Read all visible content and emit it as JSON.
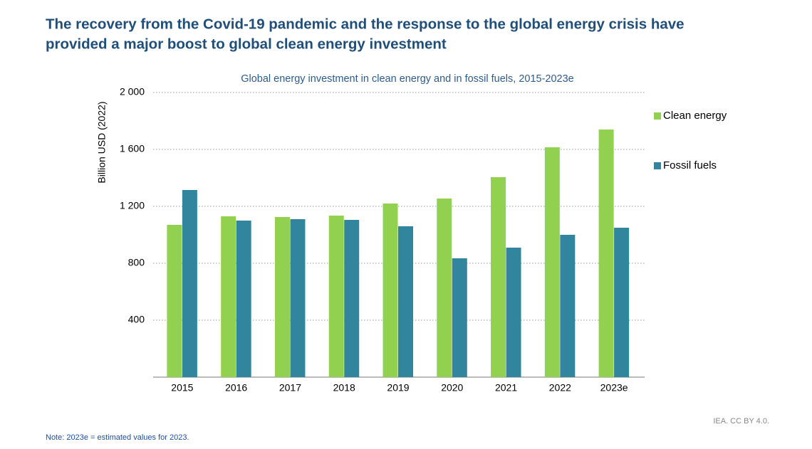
{
  "headline": [
    "The recovery from the Covid-19 pandemic and the response to the global energy crisis have",
    "provided a major boost to global clean energy investment"
  ],
  "source": "IEA. CC BY 4.0.",
  "note": "Note:  2023e = estimated values for 2023.",
  "chart_data": {
    "type": "bar",
    "title": "Global energy investment in clean energy and in fossil fuels, 2015-2023e",
    "y_label": "Billion USD (2022)",
    "categories": [
      "2015",
      "2016",
      "2017",
      "2018",
      "2019",
      "2020",
      "2021",
      "2022",
      "2023e"
    ],
    "series": [
      {
        "name": "Clean energy",
        "color": "#92d050",
        "values": [
          1070,
          1130,
          1125,
          1135,
          1220,
          1255,
          1405,
          1615,
          1740
        ]
      },
      {
        "name": "Fossil fuels",
        "color": "#31859c",
        "values": [
          1315,
          1100,
          1110,
          1105,
          1060,
          835,
          910,
          1000,
          1050
        ]
      }
    ],
    "ylim": [
      0,
      2000
    ],
    "yticks": [
      400,
      800,
      {
        "value": 1200,
        "label": "1 200"
      },
      {
        "value": 1600,
        "label": "1 600"
      },
      {
        "value": 2000,
        "label": "2 000"
      }
    ],
    "grid": true,
    "legend": "right"
  }
}
